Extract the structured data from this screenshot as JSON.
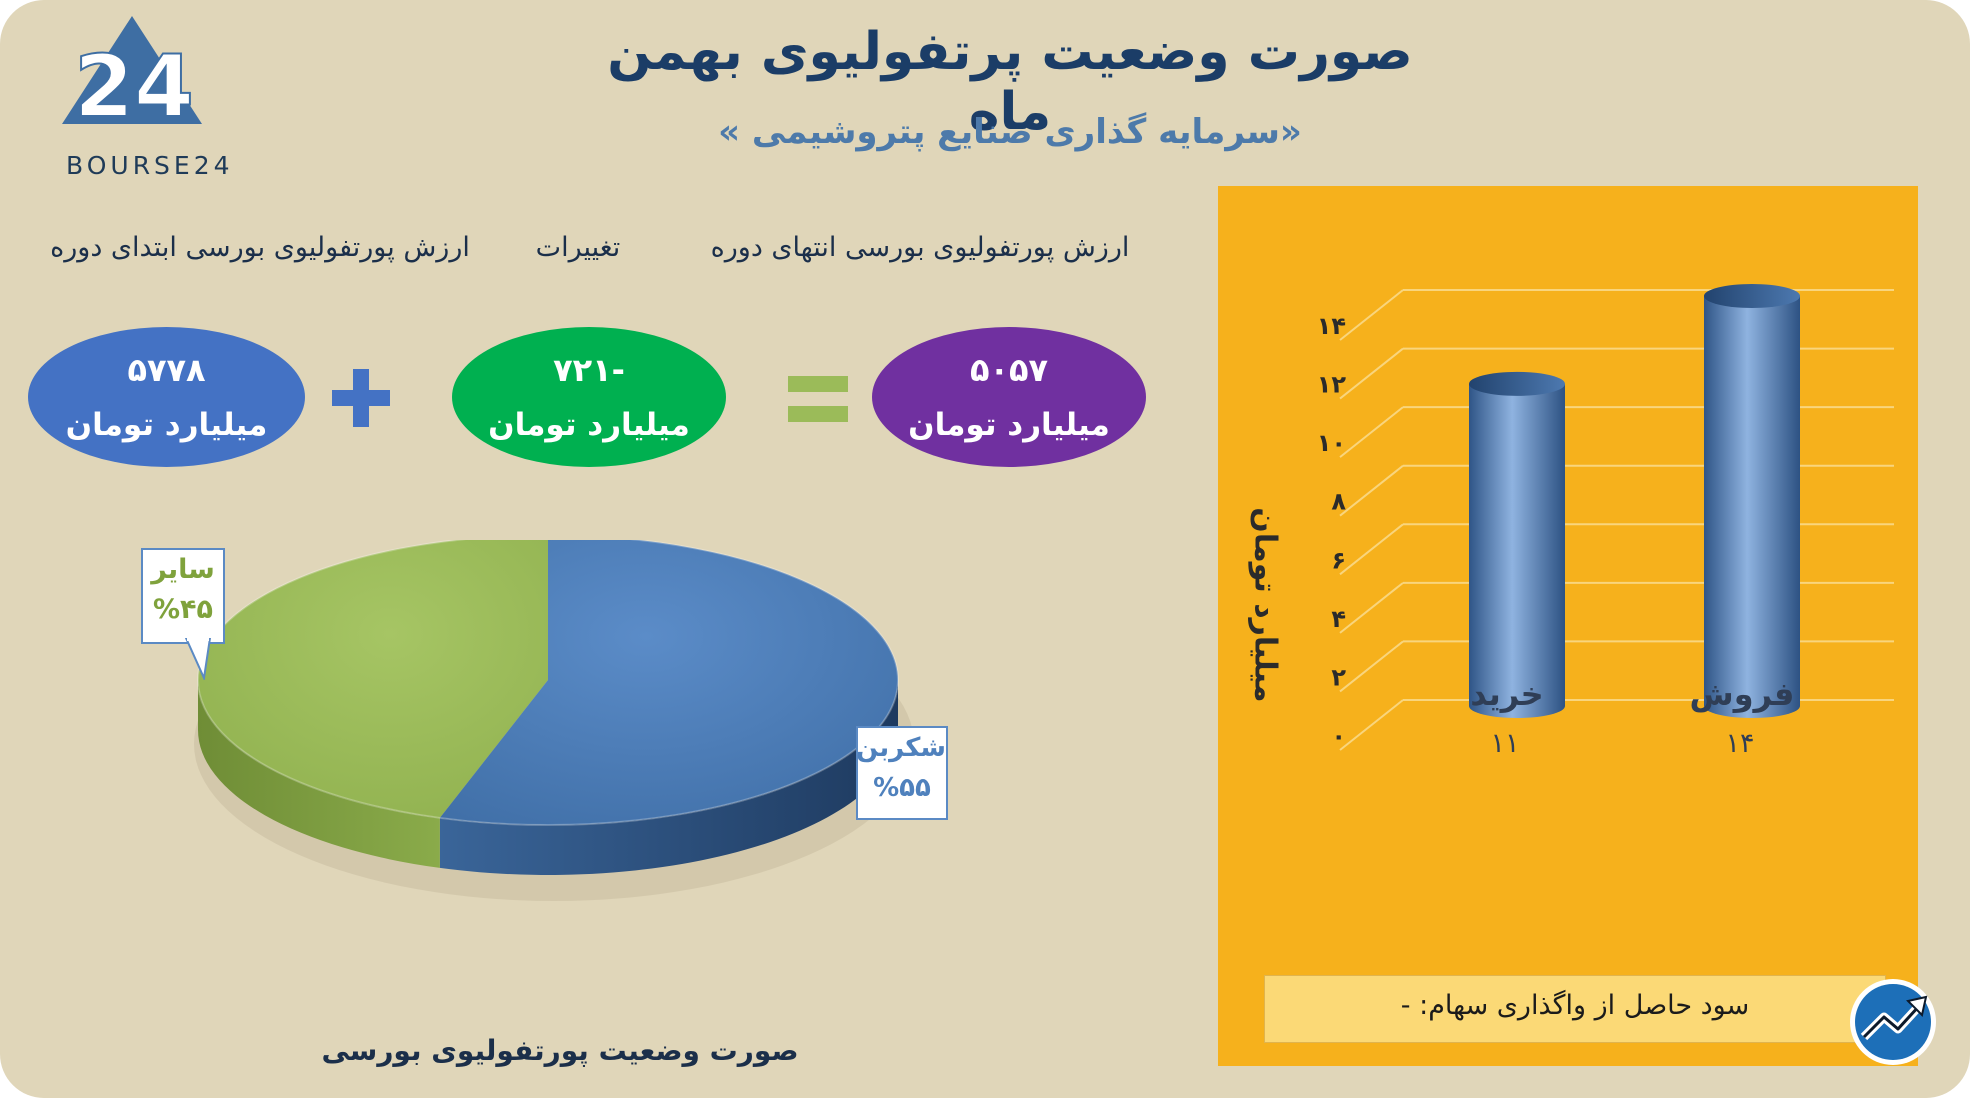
{
  "logo": {
    "text": "BOURSE24",
    "mark": "24"
  },
  "header": {
    "title": "صورت وضعیت پرتفولیوی بهمن ماه",
    "subtitle": "«سرمایه گذاری صنایع پتروشیمی »"
  },
  "equation": {
    "labels": {
      "start": "ارزش پورتفولیوی بورسی ابتدای دوره",
      "change": "تغییرات",
      "end": "ارزش پورتفولیوی بورسی انتهای دوره"
    },
    "start": {
      "value": "۵۷۷۸",
      "unit": "میلیارد تومان",
      "color": "#4472c4"
    },
    "change": {
      "value": "-۷۲۱",
      "unit": "میلیارد تومان",
      "color": "#00b050"
    },
    "end": {
      "value": "۵۰۵۷",
      "unit": "میلیارد تومان",
      "color": "#7030a0"
    },
    "plus_icon": "plus-icon",
    "equals_icon": "equals-icon"
  },
  "chart_data": [
    {
      "type": "pie",
      "title": "صورت وضعیت پورتفولیوی بورسی",
      "slices": [
        {
          "label": "شکربن",
          "percent_label": "%۵۵",
          "value": 55,
          "color": "#4f81bd"
        },
        {
          "label": "سایر",
          "percent_label": "%۴۵",
          "value": 45,
          "color": "#9bbb59"
        }
      ]
    },
    {
      "type": "bar",
      "ylabel": "میلیارد تومان",
      "ylim": [
        0,
        14
      ],
      "yticks": [
        "۰",
        "۲",
        "۴",
        "۶",
        "۸",
        "۱۰",
        "۱۲",
        "۱۴"
      ],
      "ytick_values": [
        0,
        2,
        4,
        6,
        8,
        10,
        12,
        14
      ],
      "categories": [
        "خرید",
        "فروش"
      ],
      "value_labels": [
        "۱۱",
        "۱۴"
      ],
      "values": [
        11,
        14
      ],
      "grid": true,
      "bar_color": "#4f81bd"
    }
  ],
  "profit": {
    "text": "سود حاصل از واگذاری سهام: -"
  },
  "badge": {
    "icon": "trend-up-icon"
  }
}
